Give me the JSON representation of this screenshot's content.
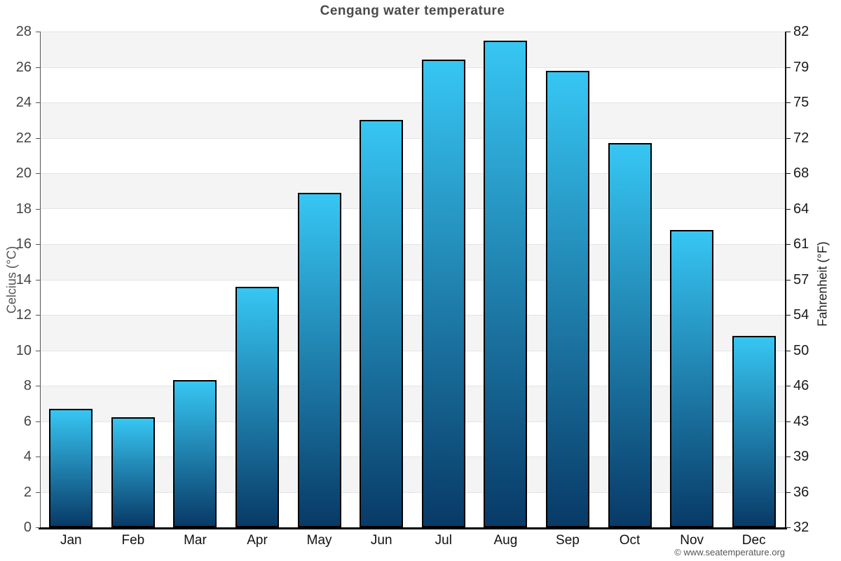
{
  "chart_data": {
    "type": "bar",
    "title": "Cengang water temperature",
    "categories": [
      "Jan",
      "Feb",
      "Mar",
      "Apr",
      "May",
      "Jun",
      "Jul",
      "Aug",
      "Sep",
      "Oct",
      "Nov",
      "Dec"
    ],
    "values": [
      6.7,
      6.2,
      8.3,
      13.6,
      18.9,
      23.0,
      26.4,
      27.5,
      25.8,
      21.7,
      16.8,
      10.8
    ],
    "xlabel": "",
    "ylabel": "Celcius (°C)",
    "y2label": "Fahrenheit (°F)",
    "ylim": [
      0,
      28
    ],
    "y_ticks": [
      0,
      2,
      4,
      6,
      8,
      10,
      12,
      14,
      16,
      18,
      20,
      22,
      24,
      26,
      28
    ],
    "y2_tick_labels": [
      "32",
      "36",
      "39",
      "43",
      "46",
      "50",
      "54",
      "57",
      "61",
      "64",
      "68",
      "72",
      "75",
      "79",
      "82"
    ],
    "grid": "horizontal striped bands every 2 units, alternating white and light gray",
    "legend": "none"
  },
  "footer": {
    "credit": "© www.seatemperature.org"
  },
  "colors": {
    "bar_gradient_top": "#37c6f3",
    "bar_gradient_bottom": "#083a67",
    "bar_border": "#000000",
    "band_gray": "#f4f4f4",
    "band_white": "#ffffff",
    "gridline": "#e4e4e4",
    "title_text": "#4a4a4a",
    "axis_text_left": "#444444",
    "axis_text_right": "#1a1a1a",
    "footer_text": "#555555"
  }
}
